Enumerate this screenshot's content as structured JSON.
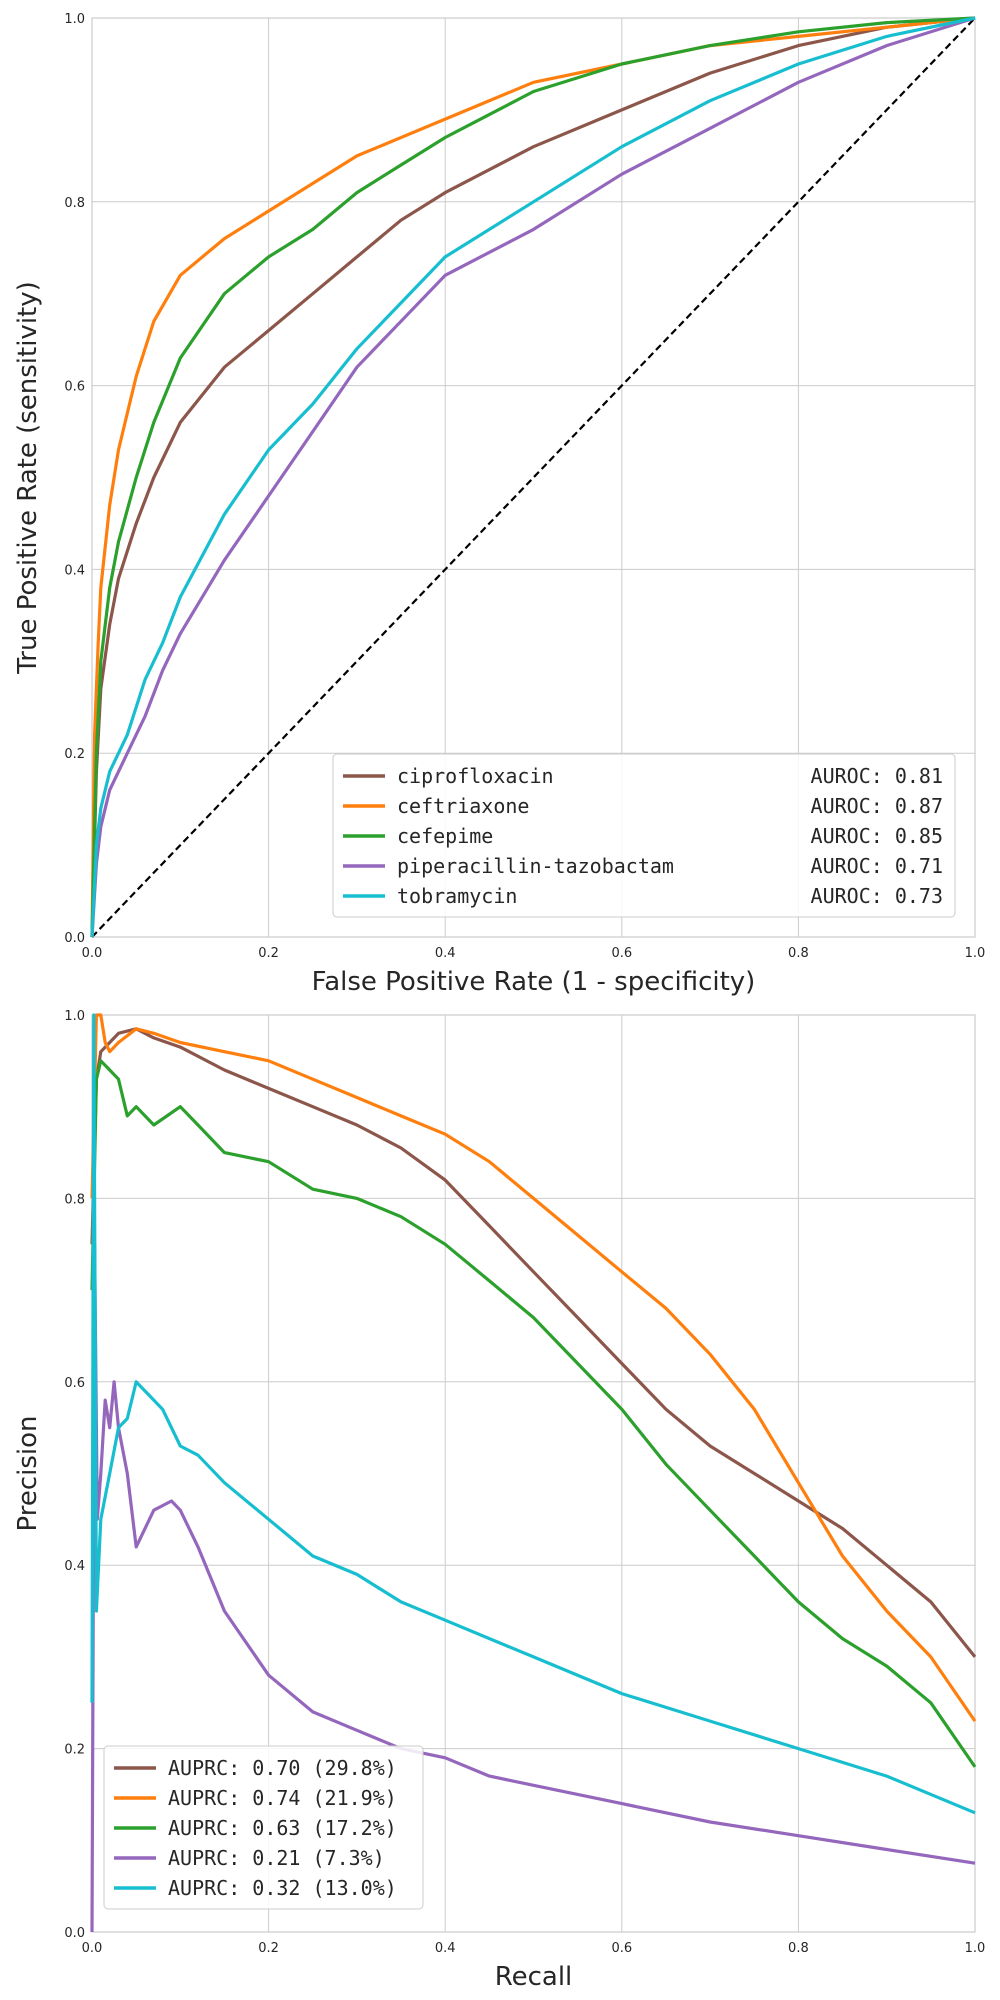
{
  "chart_data": [
    {
      "type": "line",
      "title": "",
      "xlabel": "False Positive Rate (1 - specificity)",
      "ylabel": "True Positive Rate (sensitivity)",
      "xlim": [
        0,
        1
      ],
      "ylim": [
        0,
        1
      ],
      "xticks": [
        "0.0",
        "0.2",
        "0.4",
        "0.6",
        "0.8",
        "1.0"
      ],
      "yticks": [
        "0.0",
        "0.2",
        "0.4",
        "0.6",
        "0.8",
        "1.0"
      ],
      "grid": true,
      "legend_position": "bottom-right",
      "reference_line": {
        "style": "dashed",
        "color": "#000000",
        "x": [
          0,
          1
        ],
        "y": [
          0,
          1
        ]
      },
      "series": [
        {
          "name": "ciprofloxacin",
          "metric": "AUROC: 0.81",
          "color": "#8c564b",
          "x": [
            0,
            0.005,
            0.01,
            0.02,
            0.03,
            0.05,
            0.07,
            0.1,
            0.15,
            0.2,
            0.25,
            0.3,
            0.35,
            0.4,
            0.5,
            0.6,
            0.7,
            0.8,
            0.9,
            1.0
          ],
          "y": [
            0,
            0.18,
            0.27,
            0.34,
            0.39,
            0.45,
            0.5,
            0.56,
            0.62,
            0.66,
            0.7,
            0.74,
            0.78,
            0.81,
            0.86,
            0.9,
            0.94,
            0.97,
            0.99,
            1.0
          ]
        },
        {
          "name": "ceftriaxone",
          "metric": "AUROC: 0.87",
          "color": "#ff7f0e",
          "x": [
            0,
            0.003,
            0.007,
            0.01,
            0.02,
            0.03,
            0.04,
            0.05,
            0.07,
            0.1,
            0.15,
            0.2,
            0.25,
            0.3,
            0.4,
            0.5,
            0.6,
            0.7,
            0.8,
            0.9,
            1.0
          ],
          "y": [
            0,
            0.22,
            0.32,
            0.38,
            0.47,
            0.53,
            0.57,
            0.61,
            0.67,
            0.72,
            0.76,
            0.79,
            0.82,
            0.85,
            0.89,
            0.93,
            0.95,
            0.97,
            0.98,
            0.99,
            1.0
          ]
        },
        {
          "name": "cefepime",
          "metric": "AUROC: 0.85",
          "color": "#2ca02c",
          "x": [
            0,
            0.005,
            0.01,
            0.02,
            0.03,
            0.05,
            0.07,
            0.1,
            0.15,
            0.2,
            0.25,
            0.3,
            0.35,
            0.4,
            0.5,
            0.6,
            0.7,
            0.8,
            0.9,
            1.0
          ],
          "y": [
            0,
            0.2,
            0.3,
            0.38,
            0.43,
            0.5,
            0.56,
            0.63,
            0.7,
            0.74,
            0.77,
            0.81,
            0.84,
            0.87,
            0.92,
            0.95,
            0.97,
            0.985,
            0.995,
            1.0
          ]
        },
        {
          "name": "piperacillin-tazobactam",
          "metric": "AUROC: 0.71",
          "color": "#9467bd",
          "x": [
            0,
            0.005,
            0.01,
            0.02,
            0.04,
            0.06,
            0.08,
            0.1,
            0.15,
            0.2,
            0.25,
            0.3,
            0.35,
            0.4,
            0.5,
            0.6,
            0.7,
            0.8,
            0.9,
            1.0
          ],
          "y": [
            0,
            0.08,
            0.12,
            0.16,
            0.2,
            0.24,
            0.29,
            0.33,
            0.41,
            0.48,
            0.55,
            0.62,
            0.67,
            0.72,
            0.77,
            0.83,
            0.88,
            0.93,
            0.97,
            1.0
          ]
        },
        {
          "name": "tobramycin",
          "metric": "AUROC: 0.73",
          "color": "#17becf",
          "x": [
            0,
            0.005,
            0.01,
            0.02,
            0.04,
            0.06,
            0.08,
            0.1,
            0.15,
            0.2,
            0.25,
            0.3,
            0.35,
            0.4,
            0.5,
            0.6,
            0.7,
            0.8,
            0.9,
            1.0
          ],
          "y": [
            0,
            0.1,
            0.14,
            0.18,
            0.22,
            0.28,
            0.32,
            0.37,
            0.46,
            0.53,
            0.58,
            0.64,
            0.69,
            0.74,
            0.8,
            0.86,
            0.91,
            0.95,
            0.98,
            1.0
          ]
        }
      ]
    },
    {
      "type": "line",
      "title": "",
      "xlabel": "Recall",
      "ylabel": "Precision",
      "xlim": [
        0,
        1
      ],
      "ylim": [
        0,
        1
      ],
      "xticks": [
        "0.0",
        "0.2",
        "0.4",
        "0.6",
        "0.8",
        "1.0"
      ],
      "yticks": [
        "0.0",
        "0.2",
        "0.4",
        "0.6",
        "0.8",
        "1.0"
      ],
      "grid": true,
      "legend_position": "bottom-left",
      "series": [
        {
          "name": "AUPRC: 0.70 (29.8%)",
          "color": "#8c564b",
          "x": [
            0,
            0.005,
            0.01,
            0.02,
            0.03,
            0.05,
            0.07,
            0.1,
            0.15,
            0.2,
            0.25,
            0.3,
            0.35,
            0.4,
            0.45,
            0.5,
            0.55,
            0.6,
            0.65,
            0.7,
            0.75,
            0.8,
            0.85,
            0.9,
            0.95,
            1.0
          ],
          "y": [
            0.75,
            0.93,
            0.96,
            0.97,
            0.98,
            0.985,
            0.975,
            0.965,
            0.94,
            0.92,
            0.9,
            0.88,
            0.855,
            0.82,
            0.77,
            0.72,
            0.67,
            0.62,
            0.57,
            0.53,
            0.5,
            0.47,
            0.44,
            0.4,
            0.36,
            0.3
          ]
        },
        {
          "name": "AUPRC: 0.74 (21.9%)",
          "color": "#ff7f0e",
          "x": [
            0,
            0.005,
            0.01,
            0.015,
            0.02,
            0.03,
            0.05,
            0.07,
            0.1,
            0.15,
            0.2,
            0.25,
            0.3,
            0.35,
            0.4,
            0.45,
            0.5,
            0.55,
            0.6,
            0.65,
            0.7,
            0.75,
            0.8,
            0.85,
            0.9,
            0.95,
            1.0
          ],
          "y": [
            0.8,
            1.0,
            1.0,
            0.97,
            0.96,
            0.97,
            0.985,
            0.98,
            0.97,
            0.96,
            0.95,
            0.93,
            0.91,
            0.89,
            0.87,
            0.84,
            0.8,
            0.76,
            0.72,
            0.68,
            0.63,
            0.57,
            0.49,
            0.41,
            0.35,
            0.3,
            0.23
          ]
        },
        {
          "name": "AUPRC: 0.63 (17.2%)",
          "color": "#2ca02c",
          "x": [
            0,
            0.005,
            0.01,
            0.02,
            0.03,
            0.04,
            0.05,
            0.07,
            0.1,
            0.12,
            0.15,
            0.2,
            0.25,
            0.3,
            0.35,
            0.4,
            0.45,
            0.5,
            0.55,
            0.6,
            0.65,
            0.7,
            0.75,
            0.8,
            0.85,
            0.9,
            0.95,
            1.0
          ],
          "y": [
            0.7,
            0.93,
            0.95,
            0.94,
            0.93,
            0.89,
            0.9,
            0.88,
            0.9,
            0.88,
            0.85,
            0.84,
            0.81,
            0.8,
            0.78,
            0.75,
            0.71,
            0.67,
            0.62,
            0.57,
            0.51,
            0.46,
            0.41,
            0.36,
            0.32,
            0.29,
            0.25,
            0.18
          ]
        },
        {
          "name": "AUPRC: 0.21 (7.3%)",
          "color": "#9467bd",
          "x": [
            0,
            0.003,
            0.006,
            0.01,
            0.015,
            0.02,
            0.025,
            0.03,
            0.04,
            0.05,
            0.07,
            0.09,
            0.1,
            0.12,
            0.15,
            0.2,
            0.25,
            0.3,
            0.35,
            0.4,
            0.45,
            0.5,
            0.6,
            0.7,
            0.8,
            0.9,
            1.0
          ],
          "y": [
            0.0,
            0.75,
            0.45,
            0.5,
            0.58,
            0.55,
            0.6,
            0.55,
            0.5,
            0.42,
            0.46,
            0.47,
            0.46,
            0.42,
            0.35,
            0.28,
            0.24,
            0.22,
            0.2,
            0.19,
            0.17,
            0.16,
            0.14,
            0.12,
            0.105,
            0.09,
            0.075
          ]
        },
        {
          "name": "AUPRC: 0.32 (13.0%)",
          "color": "#17becf",
          "x": [
            0,
            0.002,
            0.005,
            0.01,
            0.02,
            0.03,
            0.04,
            0.05,
            0.06,
            0.07,
            0.08,
            0.1,
            0.12,
            0.15,
            0.2,
            0.25,
            0.3,
            0.35,
            0.4,
            0.45,
            0.5,
            0.6,
            0.7,
            0.8,
            0.9,
            1.0
          ],
          "y": [
            0.25,
            1.0,
            0.35,
            0.45,
            0.5,
            0.55,
            0.56,
            0.6,
            0.59,
            0.58,
            0.57,
            0.53,
            0.52,
            0.49,
            0.45,
            0.41,
            0.39,
            0.36,
            0.34,
            0.32,
            0.3,
            0.26,
            0.23,
            0.2,
            0.17,
            0.13
          ]
        }
      ]
    }
  ]
}
